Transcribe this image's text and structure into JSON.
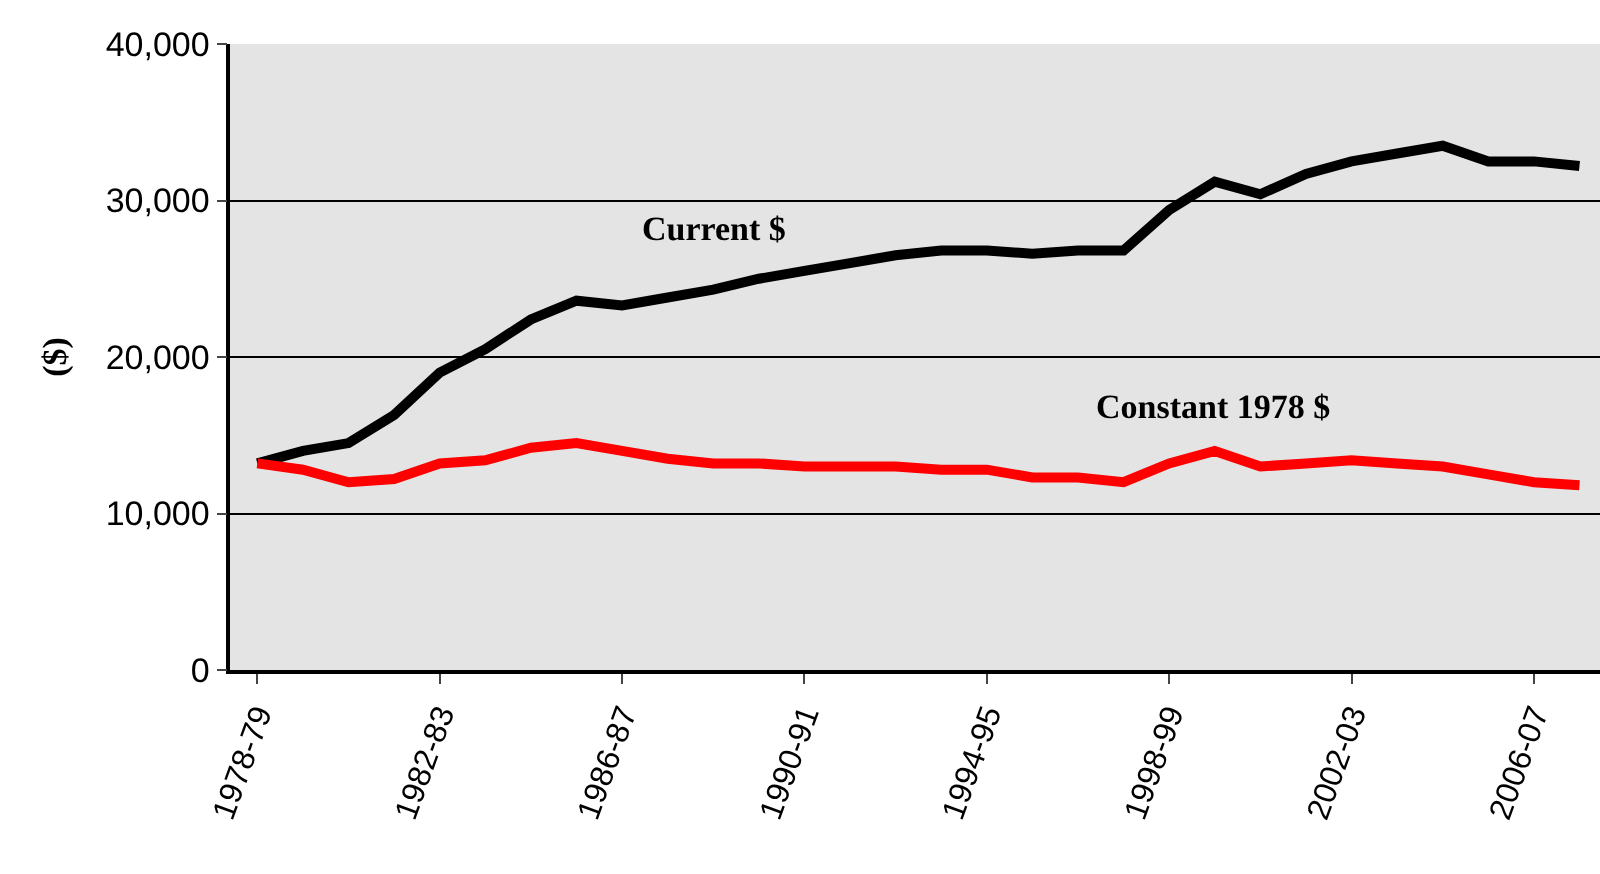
{
  "chart_data": {
    "type": "line",
    "ylabel": "($)",
    "categories": [
      "1978-79",
      null,
      null,
      null,
      "1982-83",
      null,
      null,
      null,
      "1986-87",
      null,
      null,
      null,
      "1990-91",
      null,
      null,
      null,
      "1994-95",
      null,
      null,
      null,
      "1998-99",
      null,
      null,
      null,
      "2002-03",
      null,
      null,
      null,
      "2006-07",
      null
    ],
    "series": [
      {
        "name": "Current $",
        "color": "#000000",
        "values": [
          13200,
          14000,
          14500,
          16300,
          19000,
          20500,
          22400,
          23600,
          23300,
          23800,
          24300,
          25000,
          25500,
          26000,
          26500,
          26800,
          26800,
          26600,
          26800,
          26800,
          29400,
          31200,
          30400,
          31700,
          32500,
          33000,
          33500,
          32500,
          32500,
          32200
        ]
      },
      {
        "name": "Constant 1978 $",
        "color": "#ff0000",
        "values": [
          13200,
          12800,
          12000,
          12200,
          13200,
          13400,
          14200,
          14500,
          14000,
          13500,
          13200,
          13200,
          13000,
          13000,
          13000,
          12800,
          12800,
          12300,
          12300,
          12000,
          13200,
          14000,
          13000,
          13200,
          13400,
          13200,
          13000,
          12500,
          12000,
          11800
        ]
      }
    ],
    "ylim": [
      0,
      40000
    ],
    "yticks": [
      {
        "value": 0,
        "label": "0"
      },
      {
        "value": 10000,
        "label": "10,000"
      },
      {
        "value": 20000,
        "label": "20,000"
      },
      {
        "value": 30000,
        "label": "30,000"
      },
      {
        "value": 40000,
        "label": "40,000"
      }
    ],
    "grid": "y",
    "legend": false,
    "marker": "none",
    "line_style": "solid"
  }
}
